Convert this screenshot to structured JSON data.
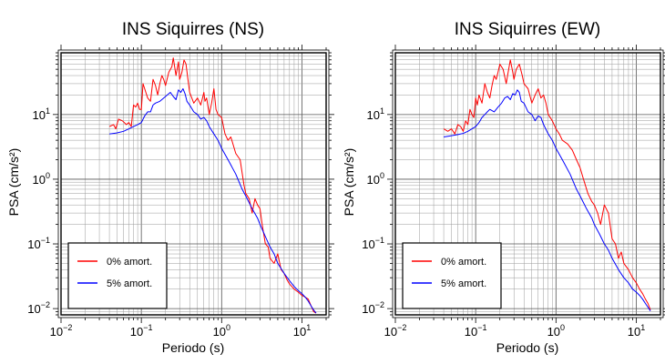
{
  "chart_data": [
    {
      "type": "line",
      "title": "INS Siquirres (NS)",
      "xlabel": "Periodo (s)",
      "ylabel": "PSA (cm/s²)",
      "xscale": "log",
      "yscale": "log",
      "xlim": [
        0.01,
        20
      ],
      "ylim": [
        0.008,
        90
      ],
      "x_ticks": [
        {
          "value": 0.01,
          "base": "10",
          "exp": "−2"
        },
        {
          "value": 0.1,
          "base": "10",
          "exp": "−1"
        },
        {
          "value": 1,
          "base": "10",
          "exp": "0"
        },
        {
          "value": 10,
          "base": "10",
          "exp": "1"
        }
      ],
      "y_ticks": [
        {
          "value": 0.01,
          "base": "10",
          "exp": "−2"
        },
        {
          "value": 0.1,
          "base": "10",
          "exp": "−1"
        },
        {
          "value": 1,
          "base": "10",
          "exp": "0"
        },
        {
          "value": 10,
          "base": "10",
          "exp": "1"
        }
      ],
      "grid": true,
      "legend_position": "bottom-left",
      "series": [
        {
          "name": "0% amort.",
          "color": "#ff0000",
          "points": [
            [
              0.04,
              6.5
            ],
            [
              0.045,
              7.0
            ],
            [
              0.048,
              6.0
            ],
            [
              0.052,
              8.5
            ],
            [
              0.058,
              8.0
            ],
            [
              0.065,
              7.0
            ],
            [
              0.07,
              7.5
            ],
            [
              0.075,
              6.5
            ],
            [
              0.08,
              14
            ],
            [
              0.085,
              13
            ],
            [
              0.09,
              15
            ],
            [
              0.095,
              12
            ],
            [
              0.1,
              12
            ],
            [
              0.105,
              30
            ],
            [
              0.11,
              25
            ],
            [
              0.12,
              18
            ],
            [
              0.13,
              16
            ],
            [
              0.14,
              35
            ],
            [
              0.15,
              28
            ],
            [
              0.16,
              20
            ],
            [
              0.17,
              30
            ],
            [
              0.18,
              40
            ],
            [
              0.19,
              35
            ],
            [
              0.2,
              28
            ],
            [
              0.22,
              45
            ],
            [
              0.24,
              55
            ],
            [
              0.25,
              75
            ],
            [
              0.27,
              40
            ],
            [
              0.29,
              65
            ],
            [
              0.3,
              35
            ],
            [
              0.32,
              45
            ],
            [
              0.34,
              70
            ],
            [
              0.36,
              60
            ],
            [
              0.38,
              35
            ],
            [
              0.4,
              22
            ],
            [
              0.45,
              15
            ],
            [
              0.5,
              18
            ],
            [
              0.55,
              14
            ],
            [
              0.6,
              22
            ],
            [
              0.62,
              16
            ],
            [
              0.65,
              18
            ],
            [
              0.7,
              10
            ],
            [
              0.75,
              15
            ],
            [
              0.8,
              25
            ],
            [
              0.85,
              12
            ],
            [
              0.9,
              10
            ],
            [
              1.0,
              9
            ],
            [
              1.1,
              5
            ],
            [
              1.2,
              4
            ],
            [
              1.3,
              4.5
            ],
            [
              1.5,
              2.5
            ],
            [
              1.7,
              2.0
            ],
            [
              1.9,
              0.8
            ],
            [
              2.0,
              0.6
            ],
            [
              2.2,
              0.5
            ],
            [
              2.4,
              0.3
            ],
            [
              2.6,
              0.5
            ],
            [
              2.8,
              0.4
            ],
            [
              3.0,
              0.35
            ],
            [
              3.2,
              0.2
            ],
            [
              3.5,
              0.1
            ],
            [
              3.8,
              0.09
            ],
            [
              4.0,
              0.06
            ],
            [
              4.5,
              0.05
            ],
            [
              5.0,
              0.07
            ],
            [
              5.5,
              0.04
            ],
            [
              6.0,
              0.035
            ],
            [
              6.5,
              0.028
            ],
            [
              7.0,
              0.024
            ],
            [
              8.0,
              0.02
            ],
            [
              9.0,
              0.018
            ],
            [
              10,
              0.016
            ],
            [
              11,
              0.015
            ],
            [
              12,
              0.014
            ],
            [
              13,
              0.011
            ],
            [
              14,
              0.009
            ],
            [
              15,
              0.0085
            ]
          ]
        },
        {
          "name": "5% amort.",
          "color": "#0000ff",
          "points": [
            [
              0.04,
              5.0
            ],
            [
              0.05,
              5.2
            ],
            [
              0.06,
              5.5
            ],
            [
              0.07,
              6.0
            ],
            [
              0.08,
              6.5
            ],
            [
              0.09,
              7.0
            ],
            [
              0.1,
              7.5
            ],
            [
              0.11,
              9.5
            ],
            [
              0.12,
              11
            ],
            [
              0.13,
              11
            ],
            [
              0.14,
              14
            ],
            [
              0.15,
              15
            ],
            [
              0.17,
              16
            ],
            [
              0.19,
              18
            ],
            [
              0.21,
              20
            ],
            [
              0.23,
              22
            ],
            [
              0.25,
              19
            ],
            [
              0.27,
              17
            ],
            [
              0.29,
              24
            ],
            [
              0.31,
              22
            ],
            [
              0.33,
              25
            ],
            [
              0.35,
              21
            ],
            [
              0.37,
              16
            ],
            [
              0.4,
              14
            ],
            [
              0.45,
              11
            ],
            [
              0.5,
              10
            ],
            [
              0.55,
              8.5
            ],
            [
              0.6,
              9.0
            ],
            [
              0.65,
              8.0
            ],
            [
              0.7,
              6.5
            ],
            [
              0.8,
              5.0
            ],
            [
              0.9,
              4.0
            ],
            [
              1.0,
              3.0
            ],
            [
              1.2,
              2.0
            ],
            [
              1.5,
              1.2
            ],
            [
              1.8,
              0.7
            ],
            [
              2.0,
              0.55
            ],
            [
              2.4,
              0.35
            ],
            [
              2.8,
              0.25
            ],
            [
              3.0,
              0.2
            ],
            [
              3.5,
              0.13
            ],
            [
              4.0,
              0.09
            ],
            [
              4.5,
              0.07
            ],
            [
              5.0,
              0.05
            ],
            [
              6.0,
              0.035
            ],
            [
              7.0,
              0.027
            ],
            [
              8.0,
              0.022
            ],
            [
              9.0,
              0.019
            ],
            [
              10,
              0.017
            ],
            [
              11,
              0.015
            ],
            [
              12,
              0.013
            ],
            [
              13,
              0.011
            ],
            [
              14,
              0.0095
            ],
            [
              15,
              0.0085
            ]
          ]
        }
      ]
    },
    {
      "type": "line",
      "title": "INS Siquirres (EW)",
      "xlabel": "Periodo (s)",
      "ylabel": "PSA (cm/s²)",
      "xscale": "log",
      "yscale": "log",
      "xlim": [
        0.01,
        20
      ],
      "ylim": [
        0.008,
        90
      ],
      "x_ticks": [
        {
          "value": 0.01,
          "base": "10",
          "exp": "−2"
        },
        {
          "value": 0.1,
          "base": "10",
          "exp": "−1"
        },
        {
          "value": 1,
          "base": "10",
          "exp": "0"
        },
        {
          "value": 10,
          "base": "10",
          "exp": "1"
        }
      ],
      "y_ticks": [
        {
          "value": 0.01,
          "base": "10",
          "exp": "−2"
        },
        {
          "value": 0.1,
          "base": "10",
          "exp": "−1"
        },
        {
          "value": 1,
          "base": "10",
          "exp": "0"
        },
        {
          "value": 10,
          "base": "10",
          "exp": "1"
        }
      ],
      "grid": true,
      "legend_position": "bottom-left",
      "series": [
        {
          "name": "0% amort.",
          "color": "#ff0000",
          "points": [
            [
              0.04,
              6.0
            ],
            [
              0.045,
              5.5
            ],
            [
              0.05,
              6.0
            ],
            [
              0.055,
              5.0
            ],
            [
              0.06,
              7.0
            ],
            [
              0.065,
              6.5
            ],
            [
              0.07,
              5.5
            ],
            [
              0.075,
              8.0
            ],
            [
              0.08,
              7.0
            ],
            [
              0.085,
              12
            ],
            [
              0.09,
              10
            ],
            [
              0.095,
              9
            ],
            [
              0.1,
              18
            ],
            [
              0.105,
              14
            ],
            [
              0.11,
              20
            ],
            [
              0.12,
              15
            ],
            [
              0.13,
              30
            ],
            [
              0.14,
              22
            ],
            [
              0.15,
              18
            ],
            [
              0.16,
              28
            ],
            [
              0.17,
              40
            ],
            [
              0.18,
              35
            ],
            [
              0.19,
              45
            ],
            [
              0.2,
              60
            ],
            [
              0.22,
              50
            ],
            [
              0.24,
              30
            ],
            [
              0.25,
              40
            ],
            [
              0.27,
              70
            ],
            [
              0.29,
              45
            ],
            [
              0.3,
              35
            ],
            [
              0.32,
              50
            ],
            [
              0.35,
              60
            ],
            [
              0.38,
              40
            ],
            [
              0.4,
              30
            ],
            [
              0.45,
              25
            ],
            [
              0.5,
              15
            ],
            [
              0.55,
              20
            ],
            [
              0.6,
              25
            ],
            [
              0.65,
              18
            ],
            [
              0.7,
              20
            ],
            [
              0.75,
              15
            ],
            [
              0.8,
              10
            ],
            [
              0.9,
              8
            ],
            [
              1.0,
              6
            ],
            [
              1.1,
              5
            ],
            [
              1.2,
              4
            ],
            [
              1.4,
              3.5
            ],
            [
              1.6,
              2.8
            ],
            [
              1.8,
              2.0
            ],
            [
              2.0,
              1.5
            ],
            [
              2.2,
              1.0
            ],
            [
              2.5,
              0.6
            ],
            [
              2.8,
              0.45
            ],
            [
              3.0,
              0.4
            ],
            [
              3.3,
              0.3
            ],
            [
              3.6,
              0.2
            ],
            [
              4.0,
              0.4
            ],
            [
              4.5,
              0.3
            ],
            [
              5.0,
              0.12
            ],
            [
              5.5,
              0.1
            ],
            [
              6.0,
              0.06
            ],
            [
              6.5,
              0.075
            ],
            [
              7.0,
              0.05
            ],
            [
              8.0,
              0.04
            ],
            [
              9.0,
              0.03
            ],
            [
              10,
              0.025
            ],
            [
              11,
              0.02
            ],
            [
              12,
              0.017
            ],
            [
              13,
              0.014
            ],
            [
              14,
              0.012
            ],
            [
              15,
              0.0095
            ]
          ]
        },
        {
          "name": "5% amort.",
          "color": "#0000ff",
          "points": [
            [
              0.04,
              4.5
            ],
            [
              0.05,
              4.7
            ],
            [
              0.06,
              4.9
            ],
            [
              0.07,
              5.1
            ],
            [
              0.08,
              5.5
            ],
            [
              0.09,
              6.0
            ],
            [
              0.1,
              6.5
            ],
            [
              0.11,
              7.5
            ],
            [
              0.12,
              9
            ],
            [
              0.13,
              10
            ],
            [
              0.14,
              11
            ],
            [
              0.15,
              12
            ],
            [
              0.17,
              11
            ],
            [
              0.19,
              13
            ],
            [
              0.21,
              15
            ],
            [
              0.23,
              18
            ],
            [
              0.25,
              19
            ],
            [
              0.27,
              17
            ],
            [
              0.29,
              21
            ],
            [
              0.31,
              20
            ],
            [
              0.33,
              24
            ],
            [
              0.35,
              22
            ],
            [
              0.37,
              16
            ],
            [
              0.4,
              15
            ],
            [
              0.45,
              11
            ],
            [
              0.5,
              10
            ],
            [
              0.55,
              8
            ],
            [
              0.6,
              9.5
            ],
            [
              0.65,
              9
            ],
            [
              0.7,
              7
            ],
            [
              0.8,
              5
            ],
            [
              0.9,
              4
            ],
            [
              1.0,
              3
            ],
            [
              1.2,
              2
            ],
            [
              1.5,
              1.2
            ],
            [
              1.8,
              0.7
            ],
            [
              2.0,
              0.55
            ],
            [
              2.4,
              0.35
            ],
            [
              2.8,
              0.25
            ],
            [
              3.0,
              0.2
            ],
            [
              3.5,
              0.14
            ],
            [
              4.0,
              0.1
            ],
            [
              4.5,
              0.08
            ],
            [
              5.0,
              0.06
            ],
            [
              6.0,
              0.04
            ],
            [
              7.0,
              0.03
            ],
            [
              8.0,
              0.025
            ],
            [
              9.0,
              0.02
            ],
            [
              10,
              0.018
            ],
            [
              11,
              0.016
            ],
            [
              12,
              0.014
            ],
            [
              13,
              0.012
            ],
            [
              14,
              0.0105
            ],
            [
              15,
              0.0092
            ]
          ]
        }
      ]
    }
  ]
}
